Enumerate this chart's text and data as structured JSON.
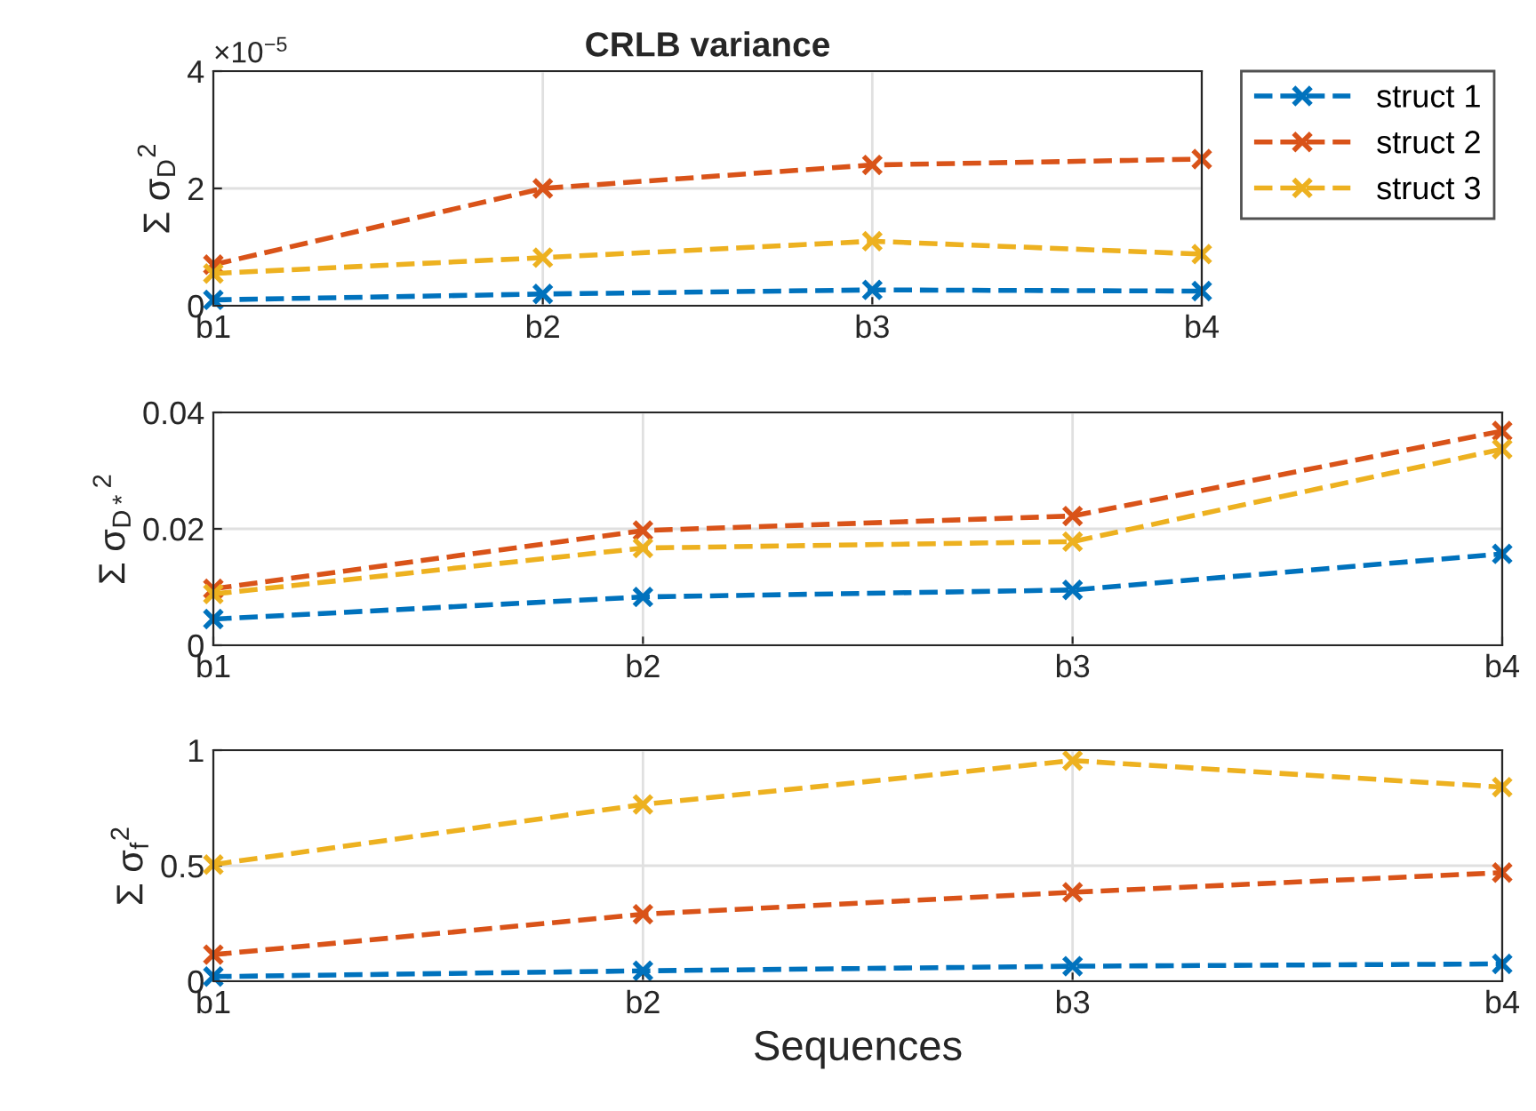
{
  "chart_data": [
    {
      "type": "line",
      "title": "CRLB variance",
      "ylabel": "Σ σ$_{D}$$^{2}$",
      "annotations": [
        "×10$^{−5}$"
      ],
      "categories": [
        "b1",
        "b2",
        "b3",
        "b4"
      ],
      "ylim": [
        0,
        4
      ],
      "yticks": [
        0,
        2,
        4
      ],
      "grid": true,
      "legend": "right",
      "marker": "cross",
      "line_style": "dashed",
      "series": [
        {
          "name": "struct 1",
          "color": "#0072bd",
          "values": [
            0.1,
            0.2,
            0.27,
            0.25
          ]
        },
        {
          "name": "struct 2",
          "color": "#d95319",
          "values": [
            0.7,
            2.0,
            2.4,
            2.5
          ]
        },
        {
          "name": "struct 3",
          "color": "#edb120",
          "values": [
            0.55,
            0.82,
            1.1,
            0.88
          ]
        }
      ]
    },
    {
      "type": "line",
      "ylabel": "Σ σ$_{D*}$$^{2}$",
      "categories": [
        "b1",
        "b2",
        "b3",
        "b4"
      ],
      "ylim": [
        0,
        0.04
      ],
      "yticks": [
        0,
        0.02,
        0.04
      ],
      "grid": true,
      "marker": "cross",
      "line_style": "dashed",
      "series": [
        {
          "color": "#0072bd",
          "values": [
            0.0045,
            0.0083,
            0.0095,
            0.0157
          ]
        },
        {
          "color": "#d95319",
          "values": [
            0.0097,
            0.0197,
            0.0222,
            0.0368
          ]
        },
        {
          "color": "#edb120",
          "values": [
            0.0088,
            0.0167,
            0.0178,
            0.0337
          ]
        }
      ]
    },
    {
      "type": "line",
      "xlabel": "Sequences",
      "ylabel": "Σ σ$_{f}$$^{2}$",
      "categories": [
        "b1",
        "b2",
        "b3",
        "b4"
      ],
      "ylim": [
        0,
        1
      ],
      "yticks": [
        0,
        0.5,
        1
      ],
      "grid": true,
      "marker": "cross",
      "line_style": "dashed",
      "series": [
        {
          "color": "#0072bd",
          "values": [
            0.02,
            0.045,
            0.065,
            0.075
          ]
        },
        {
          "color": "#d95319",
          "values": [
            0.115,
            0.29,
            0.385,
            0.47
          ]
        },
        {
          "color": "#edb120",
          "values": [
            0.505,
            0.765,
            0.955,
            0.84
          ]
        }
      ]
    }
  ]
}
